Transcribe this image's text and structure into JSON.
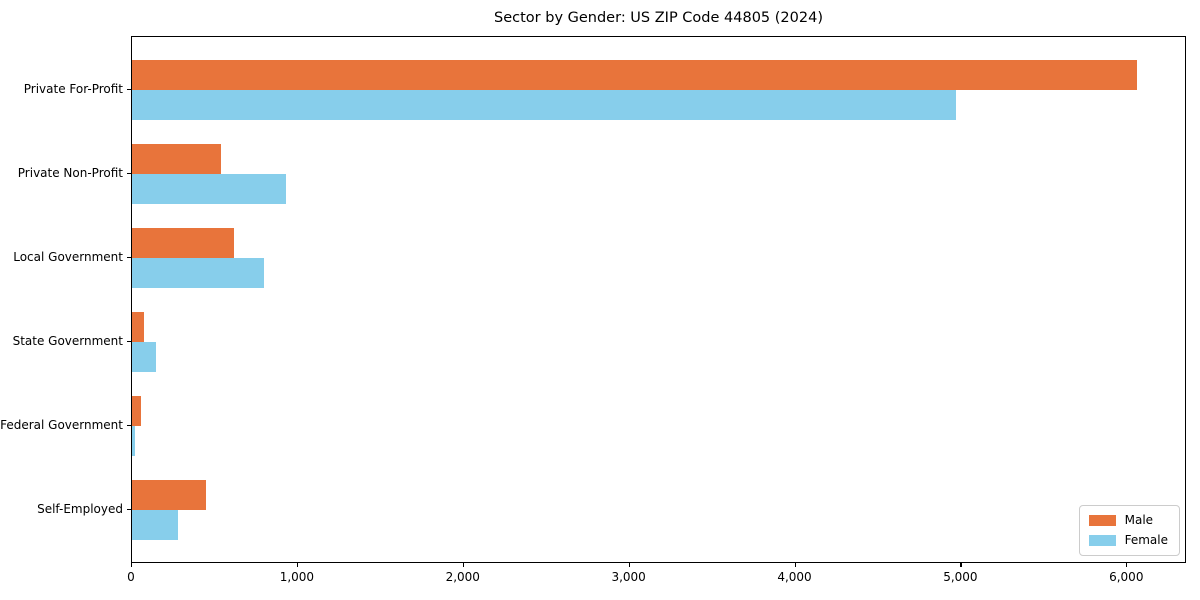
{
  "chart_data": {
    "type": "bar",
    "orientation": "horizontal",
    "title": "Sector by Gender: US ZIP Code 44805 (2024)",
    "categories": [
      "Private For-Profit",
      "Private Non-Profit",
      "Local Government",
      "State Government",
      "Federal Government",
      "Self-Employed"
    ],
    "series": [
      {
        "name": "Male",
        "color": "#e8743b",
        "values": [
          6070,
          540,
          615,
          75,
          55,
          445
        ]
      },
      {
        "name": "Female",
        "color": "#87ceeb",
        "values": [
          4975,
          930,
          800,
          145,
          20,
          275
        ]
      }
    ],
    "xlabel": "",
    "ylabel": "",
    "xlim": [
      0,
      6360
    ],
    "x_ticks": [
      0,
      1000,
      2000,
      3000,
      4000,
      5000,
      6000
    ],
    "x_tick_labels": [
      "0",
      "1,000",
      "2,000",
      "3,000",
      "4,000",
      "5,000",
      "6,000"
    ],
    "grid": false,
    "background": "#ffffff",
    "text_color": "#000000",
    "legend": {
      "position": "lower right",
      "entries": [
        "Male",
        "Female"
      ]
    }
  }
}
